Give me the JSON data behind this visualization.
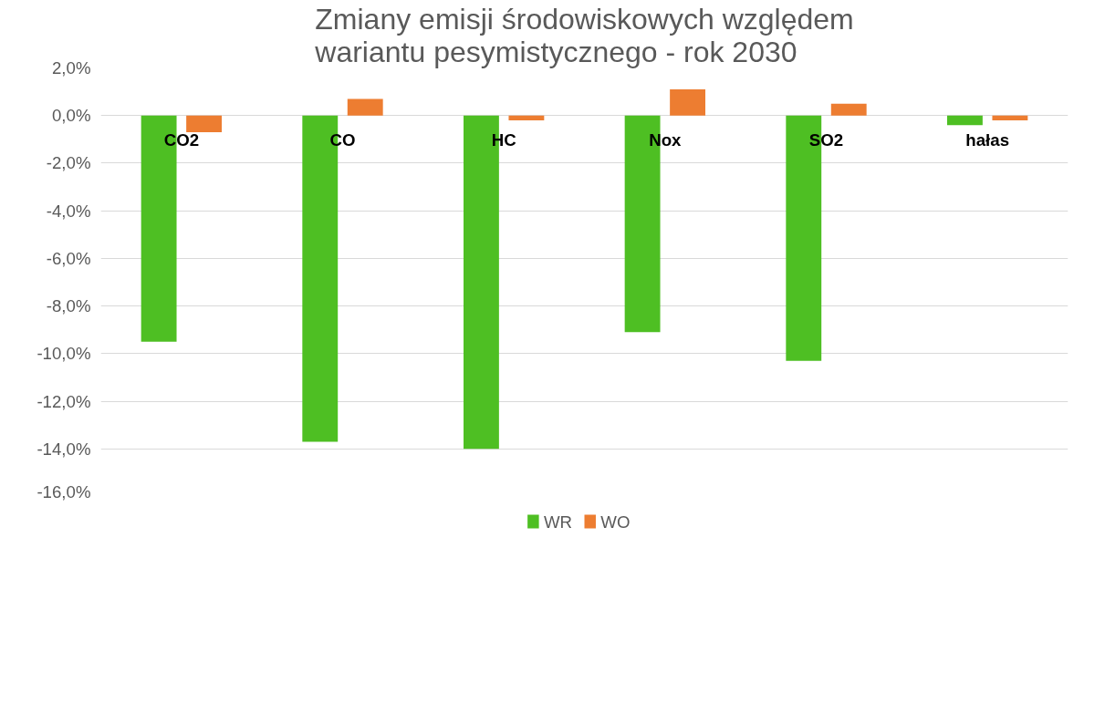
{
  "chart_data": {
    "type": "bar",
    "title": "Zmiany emisji środowiskowych względem wariantu pesymistycznego - rok 2030",
    "categories": [
      "CO2",
      "CO",
      "HC",
      "Nox",
      "SO2",
      "hałas"
    ],
    "series": [
      {
        "name": "WR",
        "color": "#4ebf23",
        "values": [
          -9.5,
          -13.7,
          -14.0,
          -9.1,
          -10.3,
          -0.4
        ]
      },
      {
        "name": "WO",
        "color": "#ed7d31",
        "values": [
          -0.7,
          0.7,
          -0.2,
          1.1,
          0.5,
          -0.2
        ]
      }
    ],
    "ylim": [
      -16,
      2
    ],
    "yticks": [
      {
        "value": 2,
        "label": "2,0%"
      },
      {
        "value": 0,
        "label": "0,0%"
      },
      {
        "value": -2,
        "label": "-2,0%"
      },
      {
        "value": -4,
        "label": "-4,0%"
      },
      {
        "value": -6,
        "label": "-6,0%"
      },
      {
        "value": -8,
        "label": "-8,0%"
      },
      {
        "value": -10,
        "label": "-10,0%"
      },
      {
        "value": -12,
        "label": "-12,0%"
      },
      {
        "value": -14,
        "label": "-14,0%"
      },
      {
        "value": -16,
        "label": "-16,0%"
      }
    ],
    "grid": "y",
    "legend": "bottom"
  }
}
